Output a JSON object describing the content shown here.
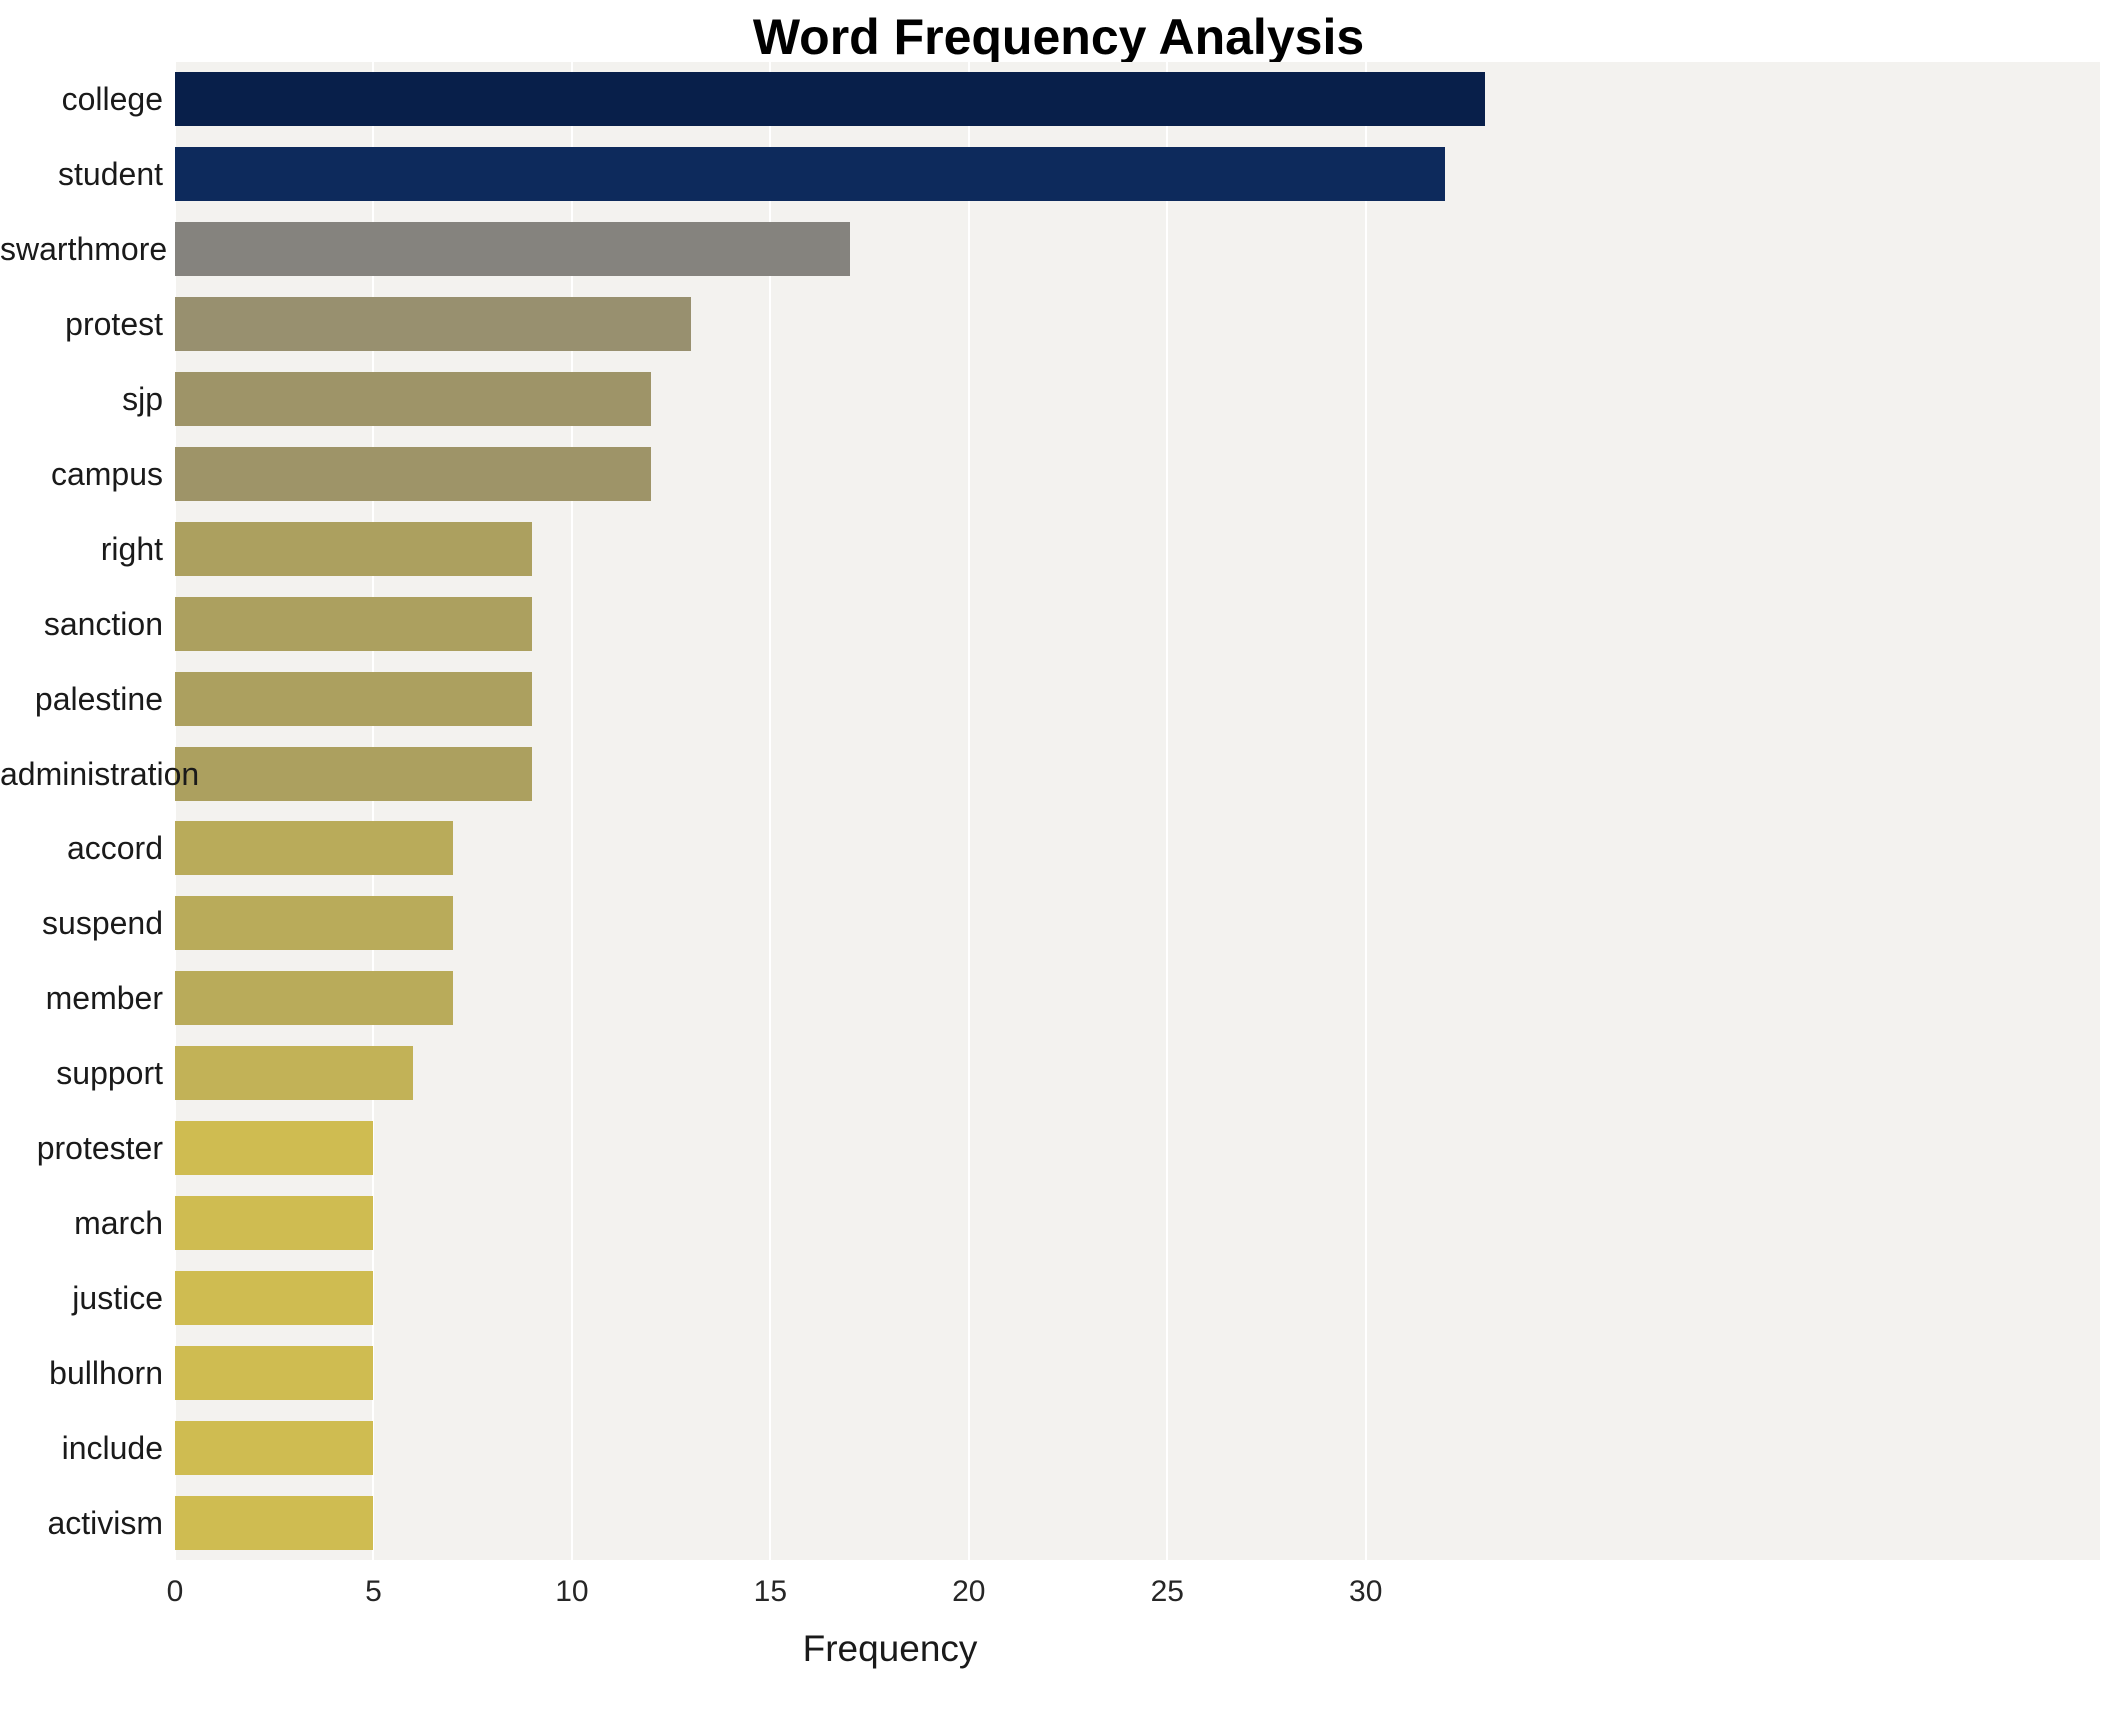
{
  "page": {
    "background": "#ffffff"
  },
  "chart_data": {
    "type": "bar",
    "orientation": "horizontal",
    "title": "Word Frequency Analysis",
    "xlabel": "Frequency",
    "ylabel": "",
    "categories": [
      "college",
      "student",
      "swarthmore",
      "protest",
      "sjp",
      "campus",
      "right",
      "sanction",
      "palestine",
      "administration",
      "accord",
      "suspend",
      "member",
      "support",
      "protester",
      "march",
      "justice",
      "bullhorn",
      "include",
      "activism"
    ],
    "values": [
      33,
      32,
      17,
      13,
      12,
      12,
      9,
      9,
      9,
      9,
      7,
      7,
      7,
      6,
      5,
      5,
      5,
      5,
      5,
      5
    ],
    "bar_colors": [
      "#081f4a",
      "#0d2a5c",
      "#85837e",
      "#98906f",
      "#9e9468",
      "#9e9468",
      "#aca05f",
      "#aca05f",
      "#aca05f",
      "#aca05f",
      "#b9ab5a",
      "#b9ab5a",
      "#b9ab5a",
      "#c2b257",
      "#cfbc51",
      "#cfbc51",
      "#cfbc51",
      "#cfbc51",
      "#cfbc51",
      "#cfbc51"
    ],
    "xlim": [
      0,
      48.5
    ],
    "xticks": [
      0,
      5,
      10,
      15,
      20,
      25,
      30
    ],
    "xtick_labels": [
      "0",
      "5",
      "10",
      "15",
      "20",
      "25",
      "30"
    ],
    "grid": true,
    "legend": "none",
    "plot_bg": "#f3f2ef",
    "grid_color": "#ffffff",
    "title_color": "#000000",
    "label_color": "#1a1a1a",
    "tick_color": "#262626"
  }
}
